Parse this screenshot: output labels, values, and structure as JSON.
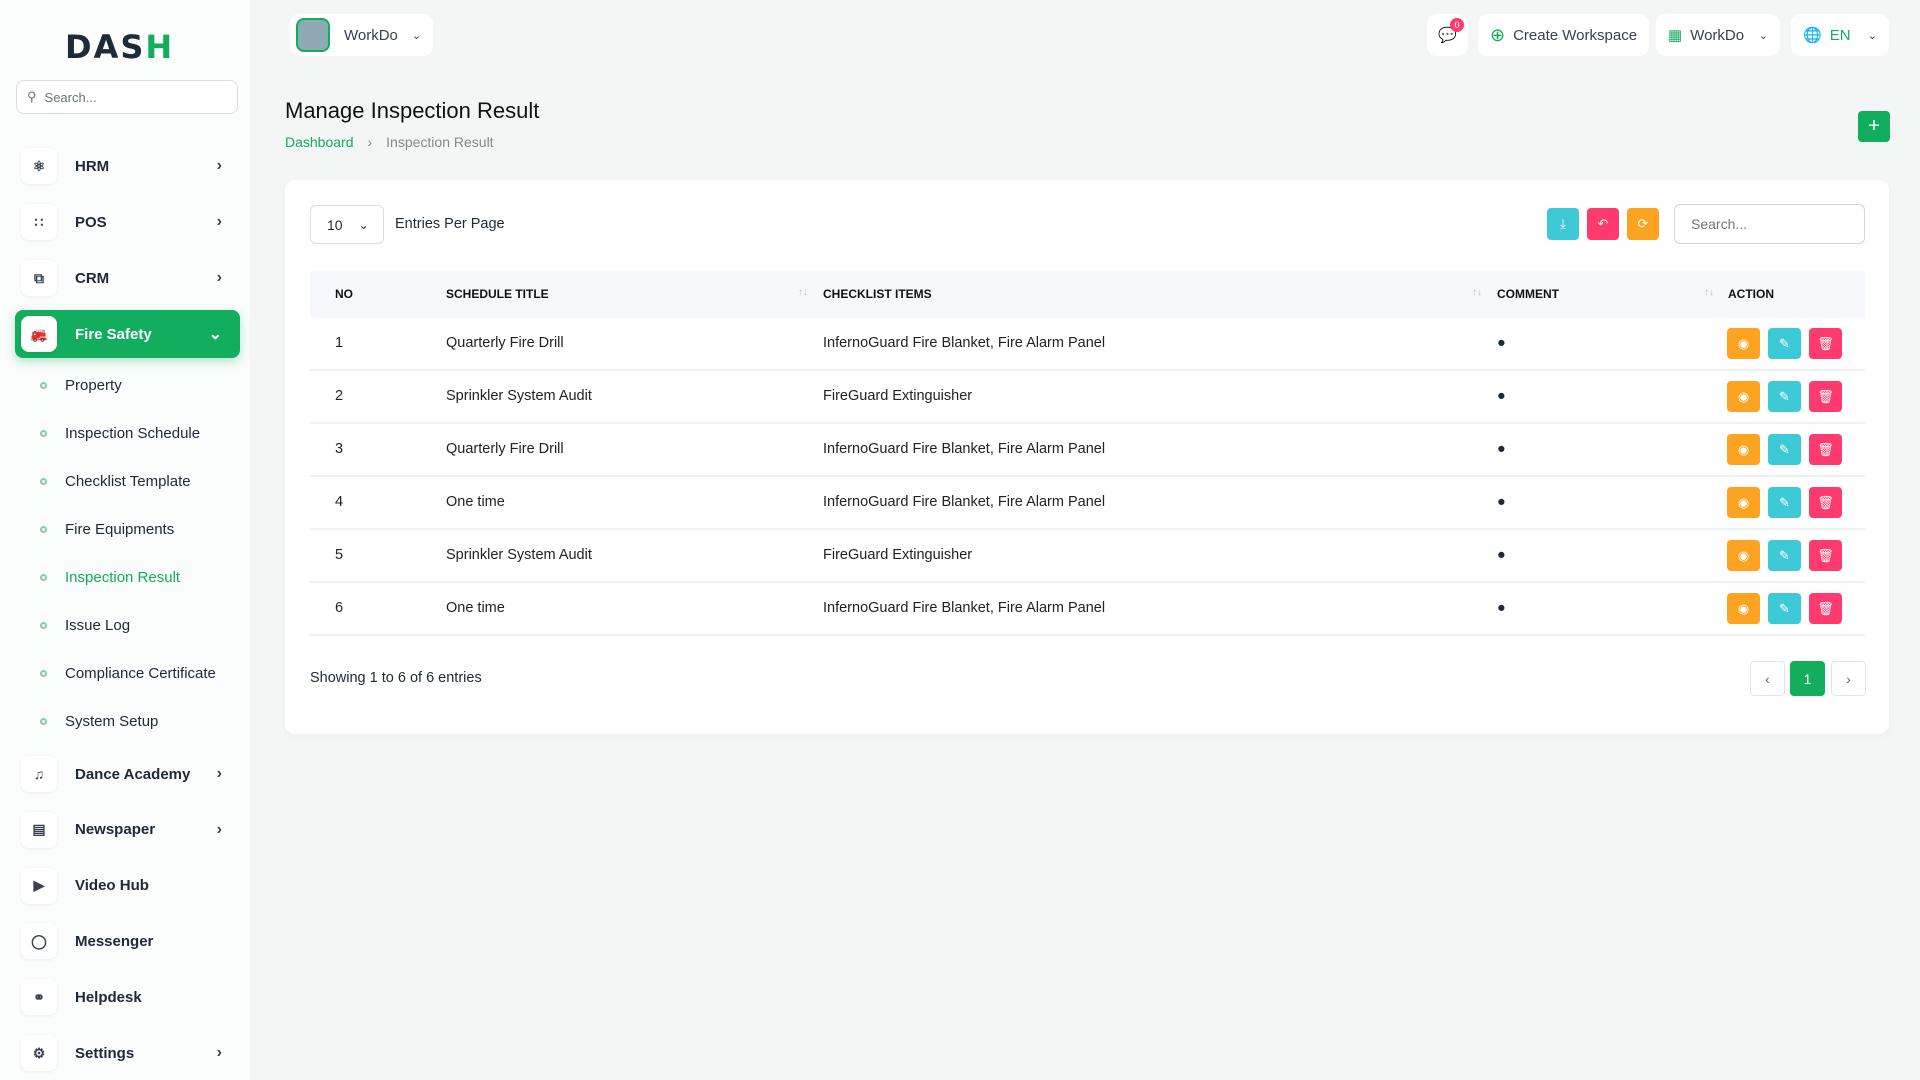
{
  "brand": {
    "logo_text": "DASH",
    "accent": "#12ad5d"
  },
  "sidebar": {
    "search_placeholder": "Search...",
    "items": [
      {
        "label": "HRM",
        "icon": "hrm-icon"
      },
      {
        "label": "POS",
        "icon": "grid-icon"
      },
      {
        "label": "CRM",
        "icon": "crm-icon"
      },
      {
        "label": "Fire Safety",
        "icon": "fire-truck-icon"
      }
    ],
    "sub_items": [
      "Property",
      "Inspection Schedule",
      "Checklist Template",
      "Fire Equipments",
      "Inspection Result",
      "Issue Log",
      "Compliance Certificate",
      "System Setup"
    ],
    "more_items": [
      {
        "label": "Dance Academy",
        "icon": "music-icon",
        "chev": true
      },
      {
        "label": "Newspaper",
        "icon": "newspaper-icon",
        "chev": true
      },
      {
        "label": "Video Hub",
        "icon": "video-icon",
        "chev": false
      },
      {
        "label": "Messenger",
        "icon": "chat-icon",
        "chev": false
      },
      {
        "label": "Helpdesk",
        "icon": "headset-icon",
        "chev": false
      },
      {
        "label": "Settings",
        "icon": "gear-icon",
        "chev": true
      }
    ]
  },
  "header": {
    "workspace": "WorkDo",
    "notifications": "0",
    "create_workspace": "Create Workspace",
    "workspace_menu": "WorkDo",
    "language": "EN"
  },
  "page": {
    "title": "Manage Inspection Result",
    "breadcrumb": [
      "Dashboard",
      "Inspection Result"
    ]
  },
  "table": {
    "per_page": "10",
    "per_page_label": "Entries Per Page",
    "search_placeholder": "Search...",
    "columns": [
      "NO",
      "SCHEDULE TITLE",
      "CHECKLIST ITEMS",
      "COMMENT",
      "ACTION"
    ],
    "rows": [
      {
        "no": "1",
        "title": "Quarterly Fire Drill",
        "items": "InfernoGuard Fire Blanket, Fire Alarm Panel"
      },
      {
        "no": "2",
        "title": "Sprinkler System Audit",
        "items": "FireGuard Extinguisher"
      },
      {
        "no": "3",
        "title": "Quarterly Fire Drill",
        "items": "InfernoGuard Fire Blanket, Fire Alarm Panel"
      },
      {
        "no": "4",
        "title": "One time",
        "items": "InfernoGuard Fire Blanket, Fire Alarm Panel"
      },
      {
        "no": "5",
        "title": "Sprinkler System Audit",
        "items": "FireGuard Extinguisher"
      },
      {
        "no": "6",
        "title": "One time",
        "items": "InfernoGuard Fire Blanket, Fire Alarm Panel"
      }
    ],
    "showing": "Showing 1 to 6 of 6 entries",
    "current_page": "1"
  },
  "colors": {
    "view": "#fca421",
    "edit": "#3ec9d6",
    "delete": "#ff3a6e",
    "download": "#3ec9d6",
    "reset": "#ff3a6e",
    "refresh": "#fca421"
  }
}
